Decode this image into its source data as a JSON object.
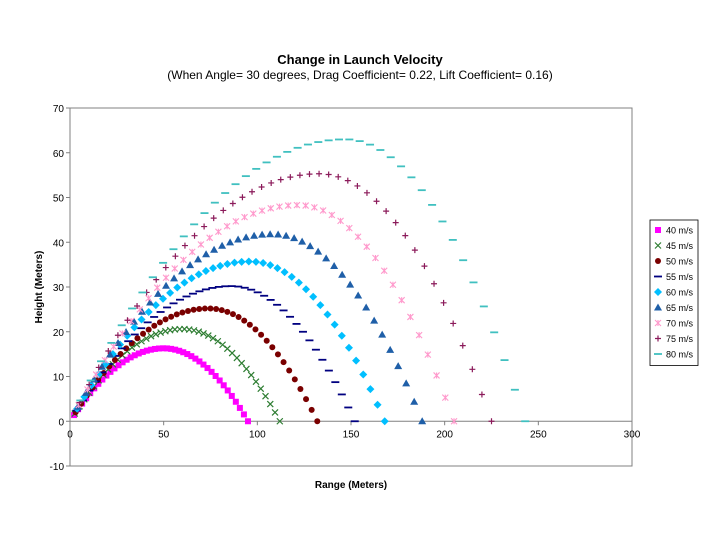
{
  "chart_data": {
    "type": "scatter",
    "title": "Change in Launch Velocity",
    "subtitle": "(When Angle= 30 degrees, Drag Coefficient= 0.22, Lift Coefficient= 0.16)",
    "xlabel": "Range (Meters)",
    "ylabel": "Height (Meters)",
    "xlim": [
      0,
      300
    ],
    "ylim": [
      -10,
      70
    ],
    "x_ticks": [
      0,
      50,
      100,
      150,
      200,
      250,
      300
    ],
    "y_ticks": [
      -10,
      0,
      10,
      20,
      30,
      40,
      50,
      60,
      70
    ],
    "grid": false,
    "legend_position": "right",
    "series": [
      {
        "name": "40 m/s",
        "marker": "square",
        "color": "#ff00ff",
        "range": 95,
        "apex_x": 50,
        "max_height": 16.3
      },
      {
        "name": "45 m/s",
        "marker": "x",
        "color": "#2e7d32",
        "range": 112,
        "apex_x": 60,
        "max_height": 20.6
      },
      {
        "name": "50 m/s",
        "marker": "circle",
        "color": "#7a0000",
        "range": 132,
        "apex_x": 74,
        "max_height": 25.2
      },
      {
        "name": "55 m/s",
        "marker": "dash",
        "color": "#000080",
        "range": 152,
        "apex_x": 86,
        "max_height": 30.2
      },
      {
        "name": "60 m/s",
        "marker": "diamond",
        "color": "#00bfff",
        "range": 168,
        "apex_x": 96,
        "max_height": 35.7
      },
      {
        "name": "65 m/s",
        "marker": "triangle",
        "color": "#1f5fa8",
        "range": 188,
        "apex_x": 108,
        "max_height": 41.8
      },
      {
        "name": "70 m/s",
        "marker": "asterisk",
        "color": "#ff99cc",
        "range": 205,
        "apex_x": 122,
        "max_height": 48.3
      },
      {
        "name": "75 m/s",
        "marker": "plus",
        "color": "#8b1a5a",
        "range": 225,
        "apex_x": 133,
        "max_height": 55.3
      },
      {
        "name": "80 m/s",
        "marker": "dash",
        "color": "#40c0c0",
        "range": 243,
        "apex_x": 147,
        "max_height": 63.0
      }
    ]
  }
}
